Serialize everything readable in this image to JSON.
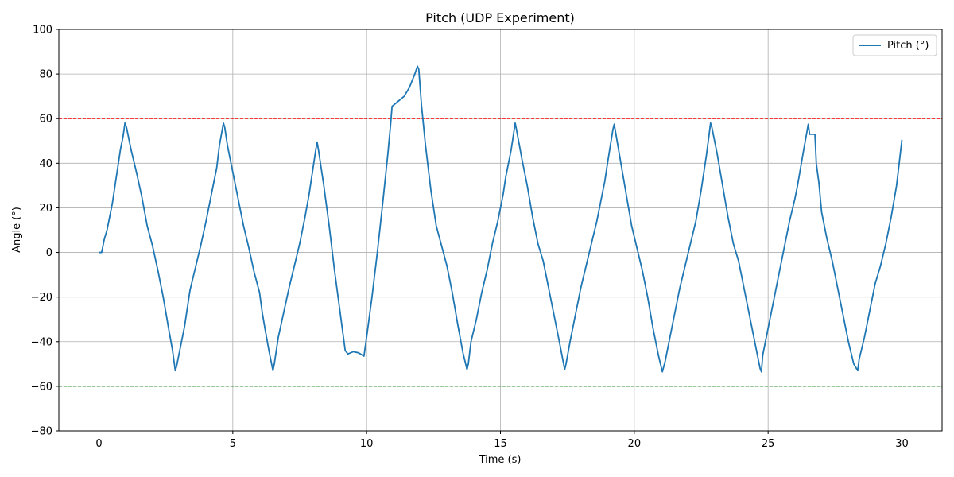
{
  "chart_data": {
    "type": "line",
    "title": "Pitch (UDP Experiment)",
    "xlabel": "Time (s)",
    "ylabel": "Angle (°)",
    "xlim": [
      -1.5,
      31.5
    ],
    "ylim": [
      -80,
      100
    ],
    "xticks": [
      0,
      5,
      10,
      15,
      20,
      25,
      30
    ],
    "yticks": [
      -80,
      -60,
      -40,
      -20,
      0,
      20,
      40,
      60,
      80,
      100
    ],
    "grid": true,
    "legend_position": "top-right",
    "series": [
      {
        "name": "Pitch (°)",
        "color": "#1f77b4",
        "points": [
          [
            0.0,
            0.0
          ],
          [
            0.1,
            0.0
          ],
          [
            0.2,
            6.0
          ],
          [
            0.3,
            10.0
          ],
          [
            0.4,
            16.0
          ],
          [
            0.5,
            22.0
          ],
          [
            0.6,
            30.0
          ],
          [
            0.7,
            38.0
          ],
          [
            0.8,
            46.0
          ],
          [
            0.9,
            52.0
          ],
          [
            0.97,
            58.0
          ],
          [
            1.03,
            56.0
          ],
          [
            1.2,
            46.0
          ],
          [
            1.4,
            36.0
          ],
          [
            1.6,
            25.0
          ],
          [
            1.8,
            12.0
          ],
          [
            2.0,
            3.0
          ],
          [
            2.2,
            -8.0
          ],
          [
            2.4,
            -20.0
          ],
          [
            2.6,
            -34.0
          ],
          [
            2.75,
            -44.0
          ],
          [
            2.85,
            -53.0
          ],
          [
            2.9,
            -51.0
          ],
          [
            3.0,
            -45.0
          ],
          [
            3.2,
            -33.0
          ],
          [
            3.3,
            -25.0
          ],
          [
            3.4,
            -17.0
          ],
          [
            3.6,
            -7.0
          ],
          [
            3.8,
            3.0
          ],
          [
            4.0,
            14.0
          ],
          [
            4.2,
            26.0
          ],
          [
            4.4,
            38.0
          ],
          [
            4.5,
            48.0
          ],
          [
            4.65,
            58.0
          ],
          [
            4.7,
            56.0
          ],
          [
            4.8,
            48.0
          ],
          [
            5.0,
            36.0
          ],
          [
            5.2,
            24.0
          ],
          [
            5.4,
            12.0
          ],
          [
            5.6,
            2.0
          ],
          [
            5.8,
            -9.0
          ],
          [
            6.0,
            -18.0
          ],
          [
            6.1,
            -27.0
          ],
          [
            6.2,
            -34.0
          ],
          [
            6.35,
            -44.0
          ],
          [
            6.5,
            -53.0
          ],
          [
            6.55,
            -50.0
          ],
          [
            6.7,
            -38.0
          ],
          [
            6.9,
            -27.0
          ],
          [
            7.1,
            -16.0
          ],
          [
            7.3,
            -6.0
          ],
          [
            7.5,
            4.0
          ],
          [
            7.7,
            16.0
          ],
          [
            7.85,
            26.0
          ],
          [
            8.0,
            38.0
          ],
          [
            8.1,
            46.0
          ],
          [
            8.15,
            49.5
          ],
          [
            8.2,
            46.0
          ],
          [
            8.4,
            30.0
          ],
          [
            8.6,
            12.0
          ],
          [
            8.8,
            -8.0
          ],
          [
            9.0,
            -26.0
          ],
          [
            9.2,
            -44.0
          ],
          [
            9.3,
            -45.5
          ],
          [
            9.5,
            -44.5
          ],
          [
            9.7,
            -45.0
          ],
          [
            9.9,
            -46.5
          ],
          [
            10.0,
            -38.0
          ],
          [
            10.2,
            -20.0
          ],
          [
            10.4,
            0.0
          ],
          [
            10.6,
            22.0
          ],
          [
            10.8,
            45.0
          ],
          [
            10.9,
            58.0
          ],
          [
            10.95,
            65.5
          ],
          [
            11.2,
            68.0
          ],
          [
            11.4,
            70.0
          ],
          [
            11.6,
            74.0
          ],
          [
            11.8,
            80.0
          ],
          [
            11.9,
            83.5
          ],
          [
            11.95,
            82.0
          ],
          [
            12.05,
            66.0
          ],
          [
            12.2,
            48.0
          ],
          [
            12.4,
            28.0
          ],
          [
            12.6,
            12.0
          ],
          [
            12.8,
            3.0
          ],
          [
            13.0,
            -6.0
          ],
          [
            13.2,
            -18.0
          ],
          [
            13.4,
            -32.0
          ],
          [
            13.6,
            -45.0
          ],
          [
            13.75,
            -52.5
          ],
          [
            13.8,
            -50.0
          ],
          [
            13.9,
            -40.0
          ],
          [
            14.1,
            -30.0
          ],
          [
            14.3,
            -18.0
          ],
          [
            14.5,
            -8.0
          ],
          [
            14.7,
            4.0
          ],
          [
            14.9,
            14.0
          ],
          [
            15.0,
            20.0
          ],
          [
            15.1,
            26.0
          ],
          [
            15.2,
            34.0
          ],
          [
            15.4,
            46.0
          ],
          [
            15.55,
            58.0
          ],
          [
            15.6,
            55.0
          ],
          [
            15.8,
            42.0
          ],
          [
            16.0,
            30.0
          ],
          [
            16.2,
            16.0
          ],
          [
            16.4,
            4.0
          ],
          [
            16.6,
            -4.0
          ],
          [
            16.8,
            -16.0
          ],
          [
            17.0,
            -28.0
          ],
          [
            17.2,
            -40.0
          ],
          [
            17.4,
            -52.5
          ],
          [
            17.45,
            -50.0
          ],
          [
            17.6,
            -40.0
          ],
          [
            17.8,
            -28.0
          ],
          [
            18.0,
            -16.0
          ],
          [
            18.2,
            -6.0
          ],
          [
            18.4,
            4.0
          ],
          [
            18.6,
            14.0
          ],
          [
            18.8,
            26.0
          ],
          [
            18.9,
            32.0
          ],
          [
            19.0,
            40.0
          ],
          [
            19.2,
            55.0
          ],
          [
            19.25,
            57.5
          ],
          [
            19.3,
            54.0
          ],
          [
            19.5,
            40.0
          ],
          [
            19.7,
            26.0
          ],
          [
            19.9,
            12.0
          ],
          [
            20.1,
            2.0
          ],
          [
            20.3,
            -8.0
          ],
          [
            20.5,
            -20.0
          ],
          [
            20.7,
            -34.0
          ],
          [
            20.9,
            -46.0
          ],
          [
            21.05,
            -53.5
          ],
          [
            21.15,
            -49.0
          ],
          [
            21.3,
            -40.0
          ],
          [
            21.5,
            -28.0
          ],
          [
            21.7,
            -16.0
          ],
          [
            21.9,
            -6.0
          ],
          [
            22.1,
            4.0
          ],
          [
            22.3,
            14.0
          ],
          [
            22.5,
            28.0
          ],
          [
            22.7,
            44.0
          ],
          [
            22.85,
            58.0
          ],
          [
            22.9,
            56.0
          ],
          [
            23.1,
            44.0
          ],
          [
            23.3,
            30.0
          ],
          [
            23.5,
            16.0
          ],
          [
            23.7,
            4.0
          ],
          [
            23.9,
            -4.0
          ],
          [
            24.1,
            -16.0
          ],
          [
            24.3,
            -28.0
          ],
          [
            24.5,
            -40.0
          ],
          [
            24.7,
            -52.0
          ],
          [
            24.75,
            -53.5
          ],
          [
            24.8,
            -46.0
          ],
          [
            25.0,
            -34.0
          ],
          [
            25.2,
            -22.0
          ],
          [
            25.4,
            -10.0
          ],
          [
            25.6,
            2.0
          ],
          [
            25.8,
            14.0
          ],
          [
            26.0,
            24.0
          ],
          [
            26.1,
            30.0
          ],
          [
            26.3,
            44.0
          ],
          [
            26.5,
            57.5
          ],
          [
            26.55,
            53.0
          ],
          [
            26.75,
            53.0
          ],
          [
            26.8,
            40.0
          ],
          [
            26.9,
            31.0
          ],
          [
            27.0,
            18.0
          ],
          [
            27.2,
            6.0
          ],
          [
            27.4,
            -4.0
          ],
          [
            27.6,
            -16.0
          ],
          [
            27.8,
            -28.0
          ],
          [
            28.0,
            -40.0
          ],
          [
            28.2,
            -50.0
          ],
          [
            28.35,
            -53.0
          ],
          [
            28.4,
            -48.0
          ],
          [
            28.6,
            -38.0
          ],
          [
            28.8,
            -26.0
          ],
          [
            29.0,
            -14.0
          ],
          [
            29.2,
            -6.0
          ],
          [
            29.4,
            4.0
          ],
          [
            29.6,
            16.0
          ],
          [
            29.8,
            30.0
          ],
          [
            30.0,
            50.5
          ]
        ]
      }
    ],
    "reference_lines": [
      {
        "y": 60,
        "color": "#ff0000",
        "style": "dashed"
      },
      {
        "y": -60,
        "color": "#008000",
        "style": "dashed"
      }
    ]
  }
}
